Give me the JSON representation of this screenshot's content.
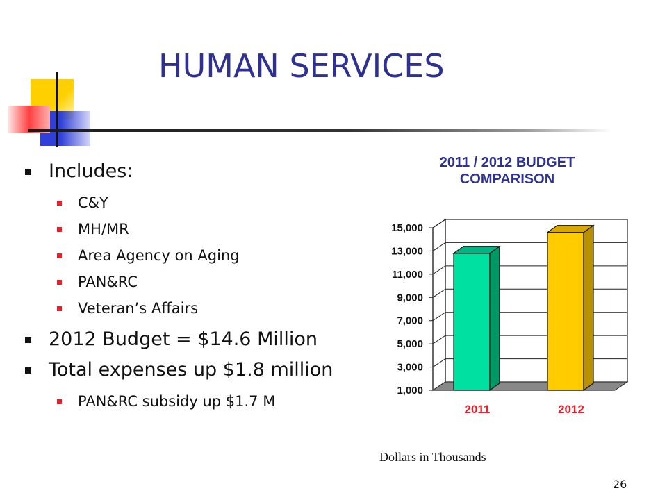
{
  "slide": {
    "title": "HUMAN SERVICES",
    "page_number": "26"
  },
  "bullets": {
    "includes": "Includes:",
    "sub_items": [
      "C&Y",
      "MH/MR",
      "Area Agency on Aging",
      "PAN&RC",
      "Veteran’s Affairs"
    ],
    "budget": "2012 Budget = $14.6 Million",
    "expenses": "Total expenses up $1.8 million",
    "expenses_sub": "PAN&RC subsidy up $1.7 M"
  },
  "colors": {
    "title": "#2e3192",
    "bullet_sub": "#e8202a",
    "bar_2011": "#00e0a0",
    "bar_2012": "#ffcc00",
    "tick_label_x": "#e8202a"
  },
  "chart_data": {
    "type": "bar",
    "title": "2011 / 2012 BUDGET COMPARISON",
    "categories": [
      "2011",
      "2012"
    ],
    "values": [
      12800,
      14600
    ],
    "ylim": [
      1000,
      15000
    ],
    "yticks": [
      "1,000",
      "3,000",
      "5,000",
      "7,000",
      "9,000",
      "11,000",
      "13,000",
      "15,000"
    ],
    "ytick_values": [
      1000,
      3000,
      5000,
      7000,
      9000,
      11000,
      13000,
      15000
    ],
    "grid": true,
    "caption": "Dollars in Thousands"
  }
}
